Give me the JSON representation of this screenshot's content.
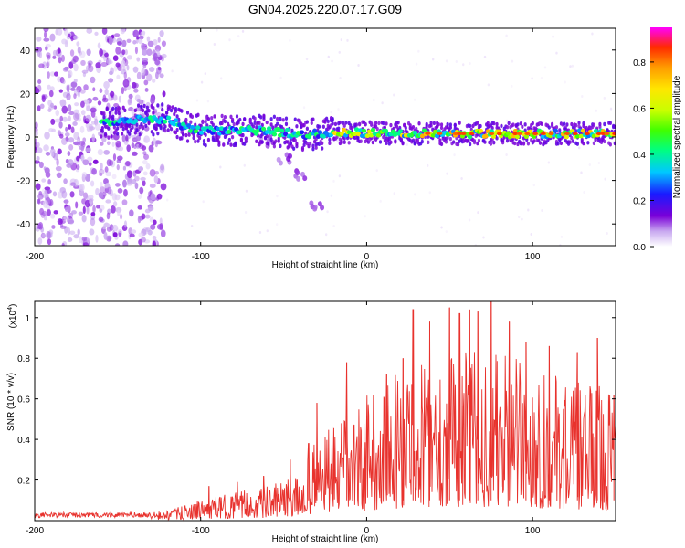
{
  "figure": {
    "title": "GN04.2025.220.07.17.G09"
  },
  "chart_data": [
    {
      "type": "heatmap",
      "panel": "top",
      "xlabel": "Height of straight line (km)",
      "ylabel": "Frequency (Hz)",
      "xlim": [
        -200,
        150
      ],
      "ylim": [
        -50,
        50
      ],
      "xticks": [
        -200,
        -100,
        0,
        100
      ],
      "yticks": [
        -40,
        -20,
        0,
        20,
        40
      ],
      "colorbar": {
        "label": "Normalized spectral amplitude",
        "range": [
          0,
          0.95
        ],
        "ticks": [
          0.0,
          0.2,
          0.4,
          0.6,
          0.8
        ],
        "colormap": [
          "#ffffff",
          "#c8a8f0",
          "#7a00d8",
          "#1a1aff",
          "#00c8ff",
          "#00ff80",
          "#40ff00",
          "#c8ff00",
          "#ffe600",
          "#ff9900",
          "#ff2a00",
          "#ff00ff"
        ]
      },
      "ridge_frequency_hz": [
        {
          "x": -160,
          "y": 6
        },
        {
          "x": -140,
          "y": 8
        },
        {
          "x": -120,
          "y": 8
        },
        {
          "x": -110,
          "y": 5
        },
        {
          "x": -100,
          "y": 3
        },
        {
          "x": -80,
          "y": 3
        },
        {
          "x": -60,
          "y": 3
        },
        {
          "x": -40,
          "y": 1
        },
        {
          "x": -20,
          "y": 2
        },
        {
          "x": 0,
          "y": 2
        },
        {
          "x": 50,
          "y": 1.5
        },
        {
          "x": 100,
          "y": 1.5
        },
        {
          "x": 150,
          "y": 1.5
        }
      ],
      "descending_branch": [
        {
          "x": -60,
          "y": -2
        },
        {
          "x": -50,
          "y": -10
        },
        {
          "x": -40,
          "y": -18
        },
        {
          "x": -30,
          "y": -32
        }
      ]
    },
    {
      "type": "line",
      "panel": "bottom",
      "xlabel": "Height of straight line (km)",
      "ylabel": "SNR (10 * v/v)",
      "y_scale_note": "(x10",
      "y_scale_exp": "4",
      "y_scale_close": ")",
      "xlim": [
        -200,
        150
      ],
      "ylim": [
        0,
        1.08
      ],
      "xticks": [
        -200,
        -100,
        0,
        100
      ],
      "yticks": [
        0.2,
        0.4,
        0.6,
        0.8,
        1.0
      ],
      "series": [
        {
          "color": "#e8322d",
          "envelope": [
            {
              "x": -200,
              "y": 0.03
            },
            {
              "x": -150,
              "y": 0.03
            },
            {
              "x": -120,
              "y": 0.05
            },
            {
              "x": -100,
              "y": 0.1
            },
            {
              "x": -80,
              "y": 0.14
            },
            {
              "x": -60,
              "y": 0.17
            },
            {
              "x": -40,
              "y": 0.22
            },
            {
              "x": -30,
              "y": 0.42
            },
            {
              "x": -10,
              "y": 0.52
            },
            {
              "x": 0,
              "y": 0.62
            },
            {
              "x": 20,
              "y": 0.75
            },
            {
              "x": 40,
              "y": 0.82
            },
            {
              "x": 60,
              "y": 0.85
            },
            {
              "x": 80,
              "y": 0.82
            },
            {
              "x": 100,
              "y": 0.78
            },
            {
              "x": 120,
              "y": 0.7
            },
            {
              "x": 150,
              "y": 0.65
            }
          ],
          "peaks": [
            {
              "x": -95,
              "y": 0.17
            },
            {
              "x": -78,
              "y": 0.19
            },
            {
              "x": -62,
              "y": 0.22
            },
            {
              "x": -46,
              "y": 0.3
            },
            {
              "x": -35,
              "y": 0.38
            },
            {
              "x": -30,
              "y": 0.58
            },
            {
              "x": -12,
              "y": 0.78
            },
            {
              "x": 12,
              "y": 0.72
            },
            {
              "x": 22,
              "y": 0.8
            },
            {
              "x": 28,
              "y": 1.04
            },
            {
              "x": 38,
              "y": 0.98
            },
            {
              "x": 50,
              "y": 1.05
            },
            {
              "x": 56,
              "y": 1.02
            },
            {
              "x": 62,
              "y": 1.04
            },
            {
              "x": 67,
              "y": 1.03
            },
            {
              "x": 75,
              "y": 1.09
            },
            {
              "x": 86,
              "y": 0.98
            },
            {
              "x": 96,
              "y": 0.88
            },
            {
              "x": 110,
              "y": 0.86
            },
            {
              "x": 127,
              "y": 0.83
            },
            {
              "x": 139,
              "y": 0.9
            },
            {
              "x": 149,
              "y": 0.62
            }
          ]
        }
      ]
    }
  ]
}
